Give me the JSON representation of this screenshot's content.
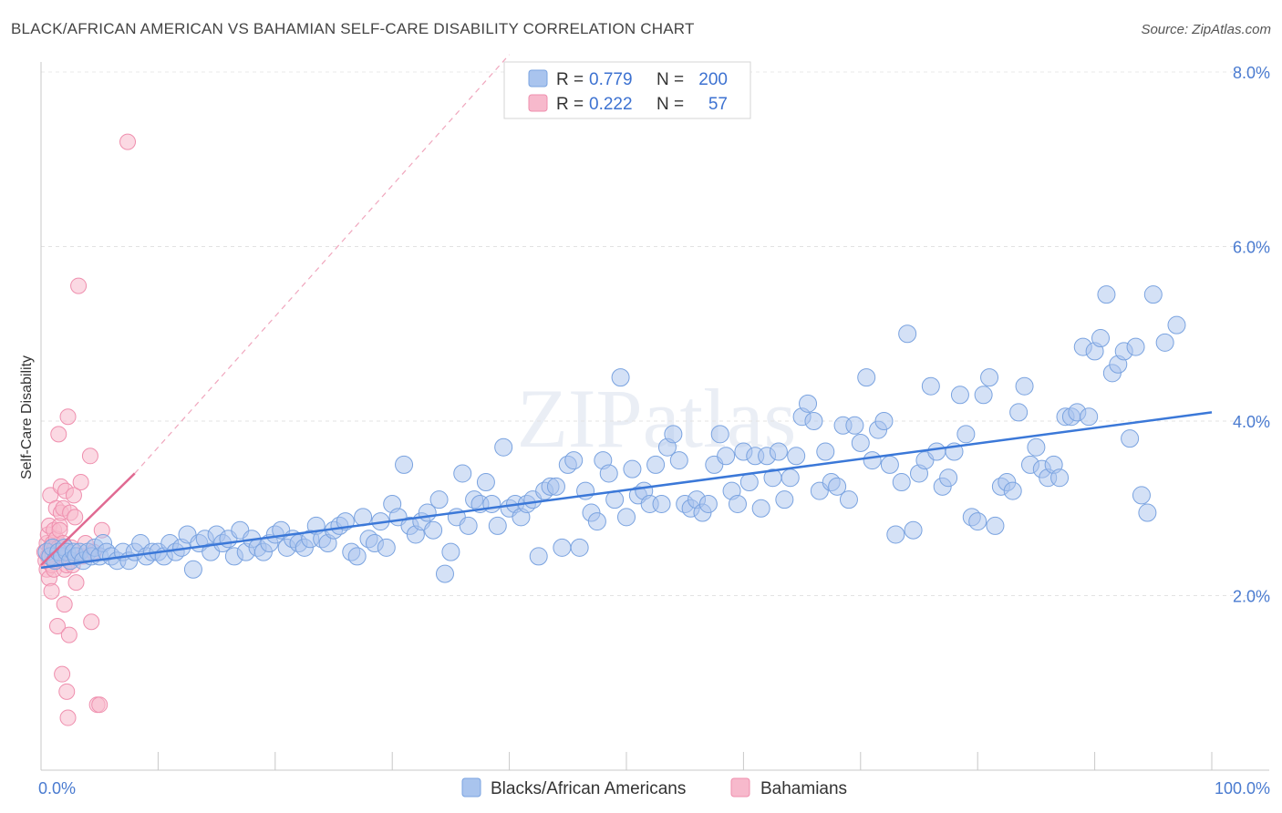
{
  "title": "BLACK/AFRICAN AMERICAN VS BAHAMIAN SELF-CARE DISABILITY CORRELATION CHART",
  "source": "Source: ZipAtlas.com",
  "watermark": "ZIPatlas",
  "chart_data": {
    "type": "scatter",
    "xlabel": "",
    "ylabel": "Self-Care Disability",
    "xlim": [
      0,
      100
    ],
    "ylim": [
      0,
      8.0
    ],
    "x_tick_labels": [
      "0.0%",
      "100.0%"
    ],
    "y_ticks": [
      2.0,
      4.0,
      6.0,
      8.0
    ],
    "y_tick_labels": [
      "2.0%",
      "4.0%",
      "6.0%",
      "8.0%"
    ],
    "grid": true,
    "legend_position": "top-center",
    "stats": [
      {
        "r_label": "R =",
        "r_value": "0.779",
        "n_label": "N =",
        "n_value": "200"
      },
      {
        "r_label": "R =",
        "r_value": "0.222",
        "n_label": "N =",
        "n_value": "57"
      }
    ],
    "series": [
      {
        "name": "Blacks/African Americans",
        "color": "#a9c4ee",
        "stroke": "#7aa3e0",
        "trend": {
          "x": [
            0,
            100
          ],
          "y": [
            2.32,
            4.1
          ]
        },
        "points": [
          [
            0.5,
            2.5
          ],
          [
            0.8,
            2.45
          ],
          [
            1.0,
            2.55
          ],
          [
            1.2,
            2.4
          ],
          [
            1.5,
            2.5
          ],
          [
            1.8,
            2.45
          ],
          [
            2.0,
            2.55
          ],
          [
            2.2,
            2.5
          ],
          [
            2.5,
            2.4
          ],
          [
            2.8,
            2.5
          ],
          [
            3.0,
            2.45
          ],
          [
            3.3,
            2.5
          ],
          [
            3.6,
            2.4
          ],
          [
            4.0,
            2.5
          ],
          [
            4.3,
            2.45
          ],
          [
            4.6,
            2.55
          ],
          [
            5.0,
            2.45
          ],
          [
            5.3,
            2.6
          ],
          [
            5.6,
            2.5
          ],
          [
            6.0,
            2.45
          ],
          [
            6.5,
            2.4
          ],
          [
            7.0,
            2.5
          ],
          [
            7.5,
            2.4
          ],
          [
            8.0,
            2.5
          ],
          [
            8.5,
            2.6
          ],
          [
            9.0,
            2.45
          ],
          [
            9.5,
            2.5
          ],
          [
            10.0,
            2.5
          ],
          [
            10.5,
            2.45
          ],
          [
            11.0,
            2.6
          ],
          [
            11.5,
            2.5
          ],
          [
            12.0,
            2.55
          ],
          [
            12.5,
            2.7
          ],
          [
            13.0,
            2.3
          ],
          [
            13.5,
            2.6
          ],
          [
            14.0,
            2.65
          ],
          [
            14.5,
            2.5
          ],
          [
            15.0,
            2.7
          ],
          [
            15.5,
            2.6
          ],
          [
            16.0,
            2.65
          ],
          [
            16.5,
            2.45
          ],
          [
            17.0,
            2.75
          ],
          [
            17.5,
            2.5
          ],
          [
            18.0,
            2.65
          ],
          [
            18.5,
            2.55
          ],
          [
            19.0,
            2.5
          ],
          [
            19.5,
            2.6
          ],
          [
            20.0,
            2.7
          ],
          [
            20.5,
            2.75
          ],
          [
            21.0,
            2.55
          ],
          [
            21.5,
            2.65
          ],
          [
            22.0,
            2.6
          ],
          [
            22.5,
            2.55
          ],
          [
            23.0,
            2.65
          ],
          [
            23.5,
            2.8
          ],
          [
            24.0,
            2.65
          ],
          [
            24.5,
            2.6
          ],
          [
            25.0,
            2.75
          ],
          [
            25.5,
            2.8
          ],
          [
            26.0,
            2.85
          ],
          [
            26.5,
            2.5
          ],
          [
            27.0,
            2.45
          ],
          [
            27.5,
            2.9
          ],
          [
            28.0,
            2.65
          ],
          [
            28.5,
            2.6
          ],
          [
            29.0,
            2.85
          ],
          [
            29.5,
            2.55
          ],
          [
            30.0,
            3.05
          ],
          [
            30.5,
            2.9
          ],
          [
            31.0,
            3.5
          ],
          [
            31.5,
            2.8
          ],
          [
            32.0,
            2.7
          ],
          [
            32.5,
            2.85
          ],
          [
            33.0,
            2.95
          ],
          [
            33.5,
            2.75
          ],
          [
            34.0,
            3.1
          ],
          [
            34.5,
            2.25
          ],
          [
            35.0,
            2.5
          ],
          [
            35.5,
            2.9
          ],
          [
            36.0,
            3.4
          ],
          [
            36.5,
            2.8
          ],
          [
            37.0,
            3.1
          ],
          [
            37.5,
            3.05
          ],
          [
            38.0,
            3.3
          ],
          [
            38.5,
            3.05
          ],
          [
            39.0,
            2.8
          ],
          [
            39.5,
            3.7
          ],
          [
            40.0,
            3.0
          ],
          [
            40.5,
            3.05
          ],
          [
            41.0,
            2.9
          ],
          [
            41.5,
            3.05
          ],
          [
            42.0,
            3.1
          ],
          [
            42.5,
            2.45
          ],
          [
            43.0,
            3.2
          ],
          [
            43.5,
            3.25
          ],
          [
            44.0,
            3.25
          ],
          [
            44.5,
            2.55
          ],
          [
            45.0,
            3.5
          ],
          [
            45.5,
            3.55
          ],
          [
            46.0,
            2.55
          ],
          [
            46.5,
            3.2
          ],
          [
            47.0,
            2.95
          ],
          [
            47.5,
            2.85
          ],
          [
            48.0,
            3.55
          ],
          [
            48.5,
            3.4
          ],
          [
            49.0,
            3.1
          ],
          [
            49.5,
            4.5
          ],
          [
            50.0,
            2.9
          ],
          [
            50.5,
            3.45
          ],
          [
            51.0,
            3.15
          ],
          [
            51.5,
            3.2
          ],
          [
            52.0,
            3.05
          ],
          [
            52.5,
            3.5
          ],
          [
            53.0,
            3.05
          ],
          [
            53.5,
            3.7
          ],
          [
            54.0,
            3.85
          ],
          [
            54.5,
            3.55
          ],
          [
            55.0,
            3.05
          ],
          [
            55.5,
            3.0
          ],
          [
            56.0,
            3.1
          ],
          [
            56.5,
            2.95
          ],
          [
            57.0,
            3.05
          ],
          [
            57.5,
            3.5
          ],
          [
            58.0,
            3.85
          ],
          [
            58.5,
            3.6
          ],
          [
            59.0,
            3.2
          ],
          [
            59.5,
            3.05
          ],
          [
            60.0,
            3.65
          ],
          [
            60.5,
            3.3
          ],
          [
            61.0,
            3.6
          ],
          [
            61.5,
            3.0
          ],
          [
            62.0,
            3.6
          ],
          [
            62.5,
            3.35
          ],
          [
            63.0,
            3.65
          ],
          [
            63.5,
            3.1
          ],
          [
            64.0,
            3.35
          ],
          [
            64.5,
            3.6
          ],
          [
            65.0,
            4.05
          ],
          [
            65.5,
            4.2
          ],
          [
            66.0,
            4.0
          ],
          [
            66.5,
            3.2
          ],
          [
            67.0,
            3.65
          ],
          [
            67.5,
            3.3
          ],
          [
            68.0,
            3.25
          ],
          [
            68.5,
            3.95
          ],
          [
            69.0,
            3.1
          ],
          [
            69.5,
            3.95
          ],
          [
            70.0,
            3.75
          ],
          [
            70.5,
            4.5
          ],
          [
            71.0,
            3.55
          ],
          [
            71.5,
            3.9
          ],
          [
            72.0,
            4.0
          ],
          [
            72.5,
            3.5
          ],
          [
            73.0,
            2.7
          ],
          [
            73.5,
            3.3
          ],
          [
            74.0,
            5.0
          ],
          [
            74.5,
            2.75
          ],
          [
            75.0,
            3.4
          ],
          [
            75.5,
            3.55
          ],
          [
            76.0,
            4.4
          ],
          [
            76.5,
            3.65
          ],
          [
            77.0,
            3.25
          ],
          [
            77.5,
            3.35
          ],
          [
            78.0,
            3.65
          ],
          [
            78.5,
            4.3
          ],
          [
            79.0,
            3.85
          ],
          [
            79.5,
            2.9
          ],
          [
            80.0,
            2.85
          ],
          [
            80.5,
            4.3
          ],
          [
            81.0,
            4.5
          ],
          [
            81.5,
            2.8
          ],
          [
            82.0,
            3.25
          ],
          [
            82.5,
            3.3
          ],
          [
            83.0,
            3.2
          ],
          [
            83.5,
            4.1
          ],
          [
            84.0,
            4.4
          ],
          [
            84.5,
            3.5
          ],
          [
            85.0,
            3.7
          ],
          [
            85.5,
            3.45
          ],
          [
            86.0,
            3.35
          ],
          [
            86.5,
            3.5
          ],
          [
            87.0,
            3.35
          ],
          [
            87.5,
            4.05
          ],
          [
            88.0,
            4.05
          ],
          [
            88.5,
            4.1
          ],
          [
            89.0,
            4.85
          ],
          [
            89.5,
            4.05
          ],
          [
            90.0,
            4.8
          ],
          [
            90.5,
            4.95
          ],
          [
            91.0,
            5.45
          ],
          [
            91.5,
            4.55
          ],
          [
            92.0,
            4.65
          ],
          [
            92.5,
            4.8
          ],
          [
            93.0,
            3.8
          ],
          [
            93.5,
            4.85
          ],
          [
            94.0,
            3.15
          ],
          [
            94.5,
            2.95
          ],
          [
            95.0,
            5.45
          ],
          [
            96.0,
            4.9
          ],
          [
            97.0,
            5.1
          ]
        ]
      },
      {
        "name": "Bahamians",
        "color": "#f7b9cc",
        "stroke": "#ef8fae",
        "trend": {
          "x": [
            0,
            8
          ],
          "y": [
            2.35,
            3.4
          ]
        },
        "trend_extended": {
          "x": [
            8,
            40
          ],
          "y": [
            3.4,
            8.2
          ]
        },
        "points": [
          [
            0.3,
            2.5
          ],
          [
            0.4,
            2.4
          ],
          [
            0.5,
            2.6
          ],
          [
            0.5,
            2.3
          ],
          [
            0.6,
            2.7
          ],
          [
            0.6,
            2.45
          ],
          [
            0.7,
            2.8
          ],
          [
            0.7,
            2.2
          ],
          [
            0.8,
            2.55
          ],
          [
            0.8,
            3.15
          ],
          [
            0.9,
            2.35
          ],
          [
            0.9,
            2.05
          ],
          [
            1.0,
            2.6
          ],
          [
            1.0,
            2.45
          ],
          [
            1.1,
            2.75
          ],
          [
            1.1,
            2.3
          ],
          [
            1.2,
            2.55
          ],
          [
            1.2,
            2.4
          ],
          [
            1.3,
            3.0
          ],
          [
            1.3,
            2.65
          ],
          [
            1.4,
            2.5
          ],
          [
            1.4,
            1.65
          ],
          [
            1.5,
            3.85
          ],
          [
            1.5,
            2.55
          ],
          [
            1.6,
            2.8
          ],
          [
            1.6,
            2.75
          ],
          [
            1.7,
            2.95
          ],
          [
            1.7,
            3.25
          ],
          [
            1.8,
            2.5
          ],
          [
            1.8,
            1.1
          ],
          [
            1.9,
            2.6
          ],
          [
            1.9,
            3.0
          ],
          [
            2.0,
            1.9
          ],
          [
            2.0,
            2.3
          ],
          [
            2.1,
            3.2
          ],
          [
            2.2,
            2.35
          ],
          [
            2.2,
            0.9
          ],
          [
            2.3,
            4.05
          ],
          [
            2.3,
            0.6
          ],
          [
            2.4,
            1.55
          ],
          [
            2.5,
            2.95
          ],
          [
            2.6,
            2.55
          ],
          [
            2.7,
            2.35
          ],
          [
            2.8,
            3.15
          ],
          [
            2.9,
            2.9
          ],
          [
            3.0,
            2.15
          ],
          [
            3.2,
            5.55
          ],
          [
            3.4,
            3.3
          ],
          [
            3.6,
            2.45
          ],
          [
            3.8,
            2.6
          ],
          [
            4.2,
            3.6
          ],
          [
            4.3,
            1.7
          ],
          [
            4.5,
            2.5
          ],
          [
            4.8,
            0.75
          ],
          [
            5.0,
            0.75
          ],
          [
            5.2,
            2.75
          ],
          [
            7.4,
            7.2
          ]
        ]
      }
    ]
  }
}
